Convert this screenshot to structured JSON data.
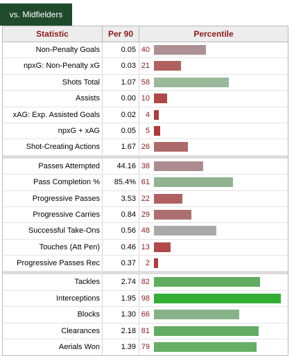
{
  "tab": {
    "label": "vs. Midfielders"
  },
  "header": {
    "statistic": "Statistic",
    "per90": "Per 90",
    "percentile": "Percentile"
  },
  "colors": {
    "low_red": "#b05a5a",
    "pink": "#b08a8a",
    "gray": "#aaaaaa",
    "sage": "#94b494",
    "green": "#5aaa5a",
    "bright_green": "#3cb043"
  },
  "groups": [
    {
      "rows": [
        {
          "stat": "Non-Penalty Goals",
          "per90": "0.05",
          "percentile": 40,
          "color": "#ad9094"
        },
        {
          "stat": "npxG: Non-Penalty xG",
          "per90": "0.03",
          "percentile": 21,
          "color": "#b06060"
        },
        {
          "stat": "Shots Total",
          "per90": "1.07",
          "percentile": 58,
          "color": "#9bb89b"
        },
        {
          "stat": "Assists",
          "per90": "0.00",
          "percentile": 10,
          "color": "#b04848"
        },
        {
          "stat": "xAG: Exp. Assisted Goals",
          "per90": "0.02",
          "percentile": 4,
          "color": "#b03a3a"
        },
        {
          "stat": "npxG + xAG",
          "per90": "0.05",
          "percentile": 5,
          "color": "#b03a3a"
        },
        {
          "stat": "Shot-Creating Actions",
          "per90": "1.67",
          "percentile": 26,
          "color": "#ad6a6a"
        }
      ]
    },
    {
      "rows": [
        {
          "stat": "Passes Attempted",
          "per90": "44.16",
          "percentile": 38,
          "color": "#ad8c90"
        },
        {
          "stat": "Pass Completion %",
          "per90": "85.4%",
          "percentile": 61,
          "color": "#8fb48f"
        },
        {
          "stat": "Progressive Passes",
          "per90": "3.53",
          "percentile": 22,
          "color": "#b06060"
        },
        {
          "stat": "Progressive Carries",
          "per90": "0.84",
          "percentile": 29,
          "color": "#ad7070"
        },
        {
          "stat": "Successful Take-Ons",
          "per90": "0.56",
          "percentile": 48,
          "color": "#aaaaaa"
        },
        {
          "stat": "Touches (Att Pen)",
          "per90": "0.46",
          "percentile": 13,
          "color": "#b04848"
        },
        {
          "stat": "Progressive Passes Rec",
          "per90": "0.37",
          "percentile": 2,
          "color": "#b03a3a"
        }
      ]
    },
    {
      "rows": [
        {
          "stat": "Tackles",
          "per90": "2.74",
          "percentile": 82,
          "color": "#5fac5f"
        },
        {
          "stat": "Interceptions",
          "per90": "1.95",
          "percentile": 98,
          "color": "#34ad34"
        },
        {
          "stat": "Blocks",
          "per90": "1.30",
          "percentile": 66,
          "color": "#88b388"
        },
        {
          "stat": "Clearances",
          "per90": "2.18",
          "percentile": 81,
          "color": "#62ac62"
        },
        {
          "stat": "Aerials Won",
          "per90": "1.39",
          "percentile": 79,
          "color": "#66ae66"
        }
      ]
    }
  ]
}
